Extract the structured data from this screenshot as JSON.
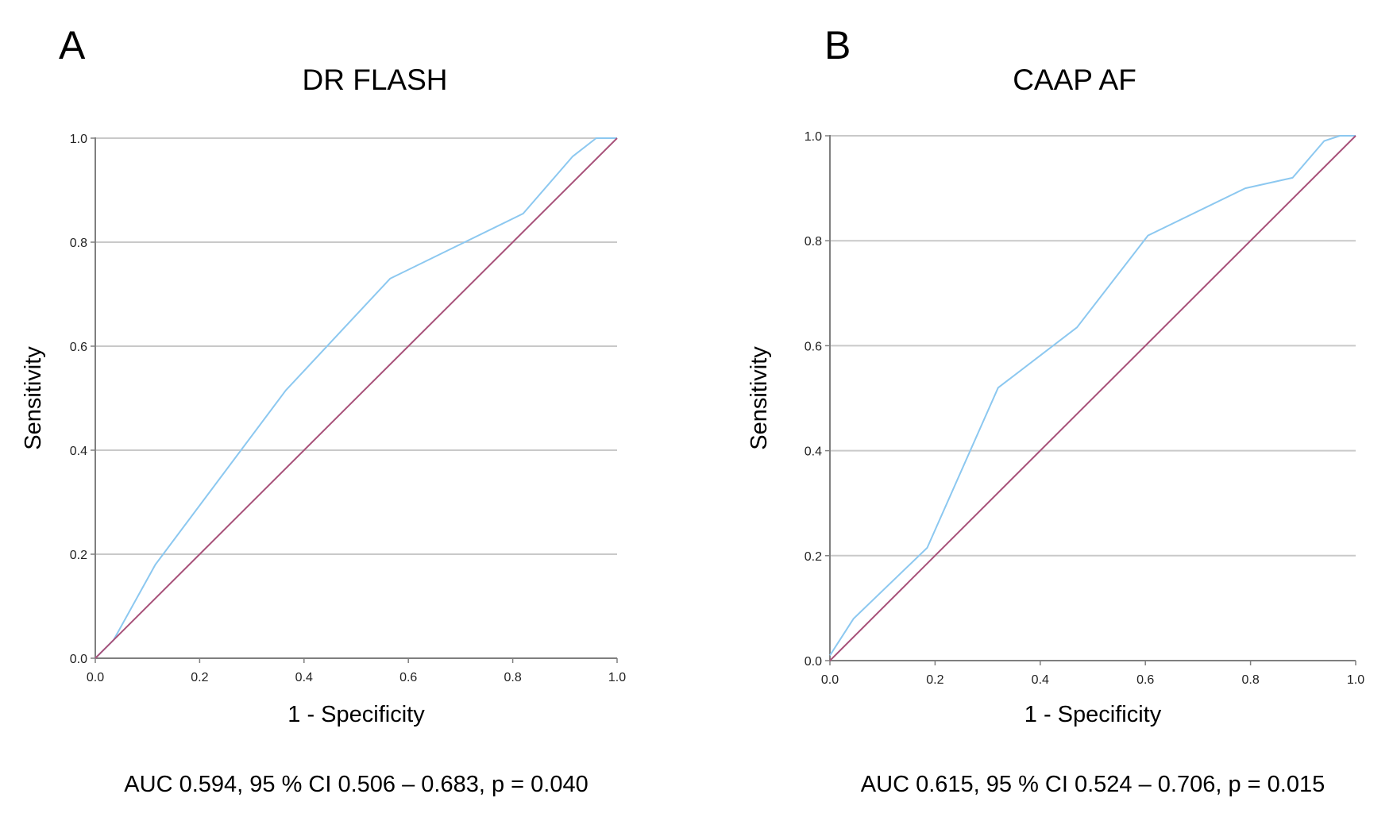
{
  "colors": {
    "roc_curve": "#8CC8F0",
    "reference_line": "#A8527A",
    "gridline": "#C9C9C9",
    "axis": "#7F7F7F"
  },
  "chart_data": [
    {
      "type": "line",
      "panel_label": "A",
      "title": "DR FLASH",
      "xlabel": "1 - Specificity",
      "ylabel": "Sensitivity",
      "xlim": [
        0,
        1
      ],
      "ylim": [
        0,
        1
      ],
      "x_ticks": [
        "0.0",
        "0.2",
        "0.4",
        "0.6",
        "0.8",
        "1.0"
      ],
      "y_ticks": [
        "0.0",
        "0.2",
        "0.4",
        "0.6",
        "0.8",
        "1.0"
      ],
      "grid": "horizontal",
      "series": [
        {
          "role": "roc",
          "x": [
            0,
            0.035,
            0.115,
            0.365,
            0.565,
            0.82,
            0.915,
            0.96,
            1.0
          ],
          "y": [
            0,
            0.035,
            0.18,
            0.515,
            0.73,
            0.855,
            0.965,
            1.0,
            1.0
          ]
        },
        {
          "role": "reference",
          "x": [
            0,
            1
          ],
          "y": [
            0,
            1
          ]
        }
      ],
      "annotation": "AUC 0.594, 95 % CI 0.506 – 0.683, p = 0.040"
    },
    {
      "type": "line",
      "panel_label": "B",
      "title": "CAAP AF",
      "xlabel": "1 - Specificity",
      "ylabel": "Sensitivity",
      "xlim": [
        0,
        1
      ],
      "ylim": [
        0,
        1
      ],
      "x_ticks": [
        "0.0",
        "0.2",
        "0.4",
        "0.6",
        "0.8",
        "1.0"
      ],
      "y_ticks": [
        "0.0",
        "0.2",
        "0.4",
        "0.6",
        "0.8",
        "1.0"
      ],
      "grid": "horizontal",
      "series": [
        {
          "role": "roc",
          "x": [
            0,
            0.045,
            0.185,
            0.32,
            0.47,
            0.605,
            0.79,
            0.88,
            0.94,
            0.97,
            1.0
          ],
          "y": [
            0.01,
            0.08,
            0.215,
            0.52,
            0.635,
            0.81,
            0.9,
            0.92,
            0.99,
            1.0,
            1.0
          ]
        },
        {
          "role": "reference",
          "x": [
            0,
            1
          ],
          "y": [
            0,
            1
          ]
        }
      ],
      "annotation": "AUC 0.615, 95 % CI 0.524 – 0.706, p = 0.015"
    }
  ]
}
